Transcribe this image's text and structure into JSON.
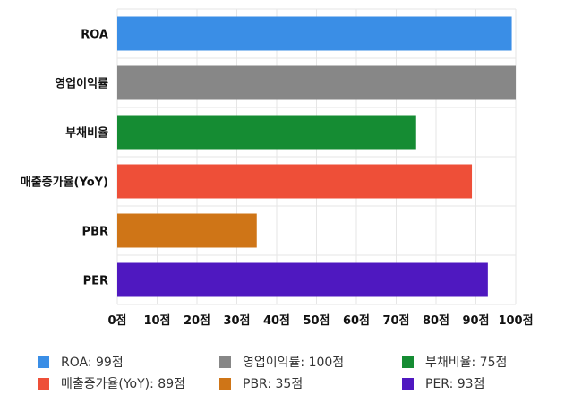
{
  "chart_data": {
    "type": "bar",
    "orientation": "horizontal",
    "categories": [
      "ROA",
      "영업이익률",
      "부채비율",
      "매출증가율(YoY)",
      "PBR",
      "PER"
    ],
    "values": [
      99,
      100,
      75,
      89,
      35,
      93
    ],
    "colors": [
      "#3a8ee6",
      "#878787",
      "#158c33",
      "#ee4f38",
      "#cf7517",
      "#4f18c0"
    ],
    "xlim": [
      0,
      100
    ],
    "x_ticks": [
      0,
      10,
      20,
      30,
      40,
      50,
      60,
      70,
      80,
      90,
      100
    ],
    "tick_suffix": "점",
    "grid": true,
    "legend_position": "bottom",
    "legend": [
      {
        "label": "ROA: 99점",
        "color": "#3a8ee6"
      },
      {
        "label": "영업이익률: 100점",
        "color": "#878787"
      },
      {
        "label": "부채비율: 75점",
        "color": "#158c33"
      },
      {
        "label": "매출증가율(YoY): 89점",
        "color": "#ee4f38"
      },
      {
        "label": "PBR: 35점",
        "color": "#cf7517"
      },
      {
        "label": "PER: 93점",
        "color": "#4f18c0"
      }
    ]
  }
}
